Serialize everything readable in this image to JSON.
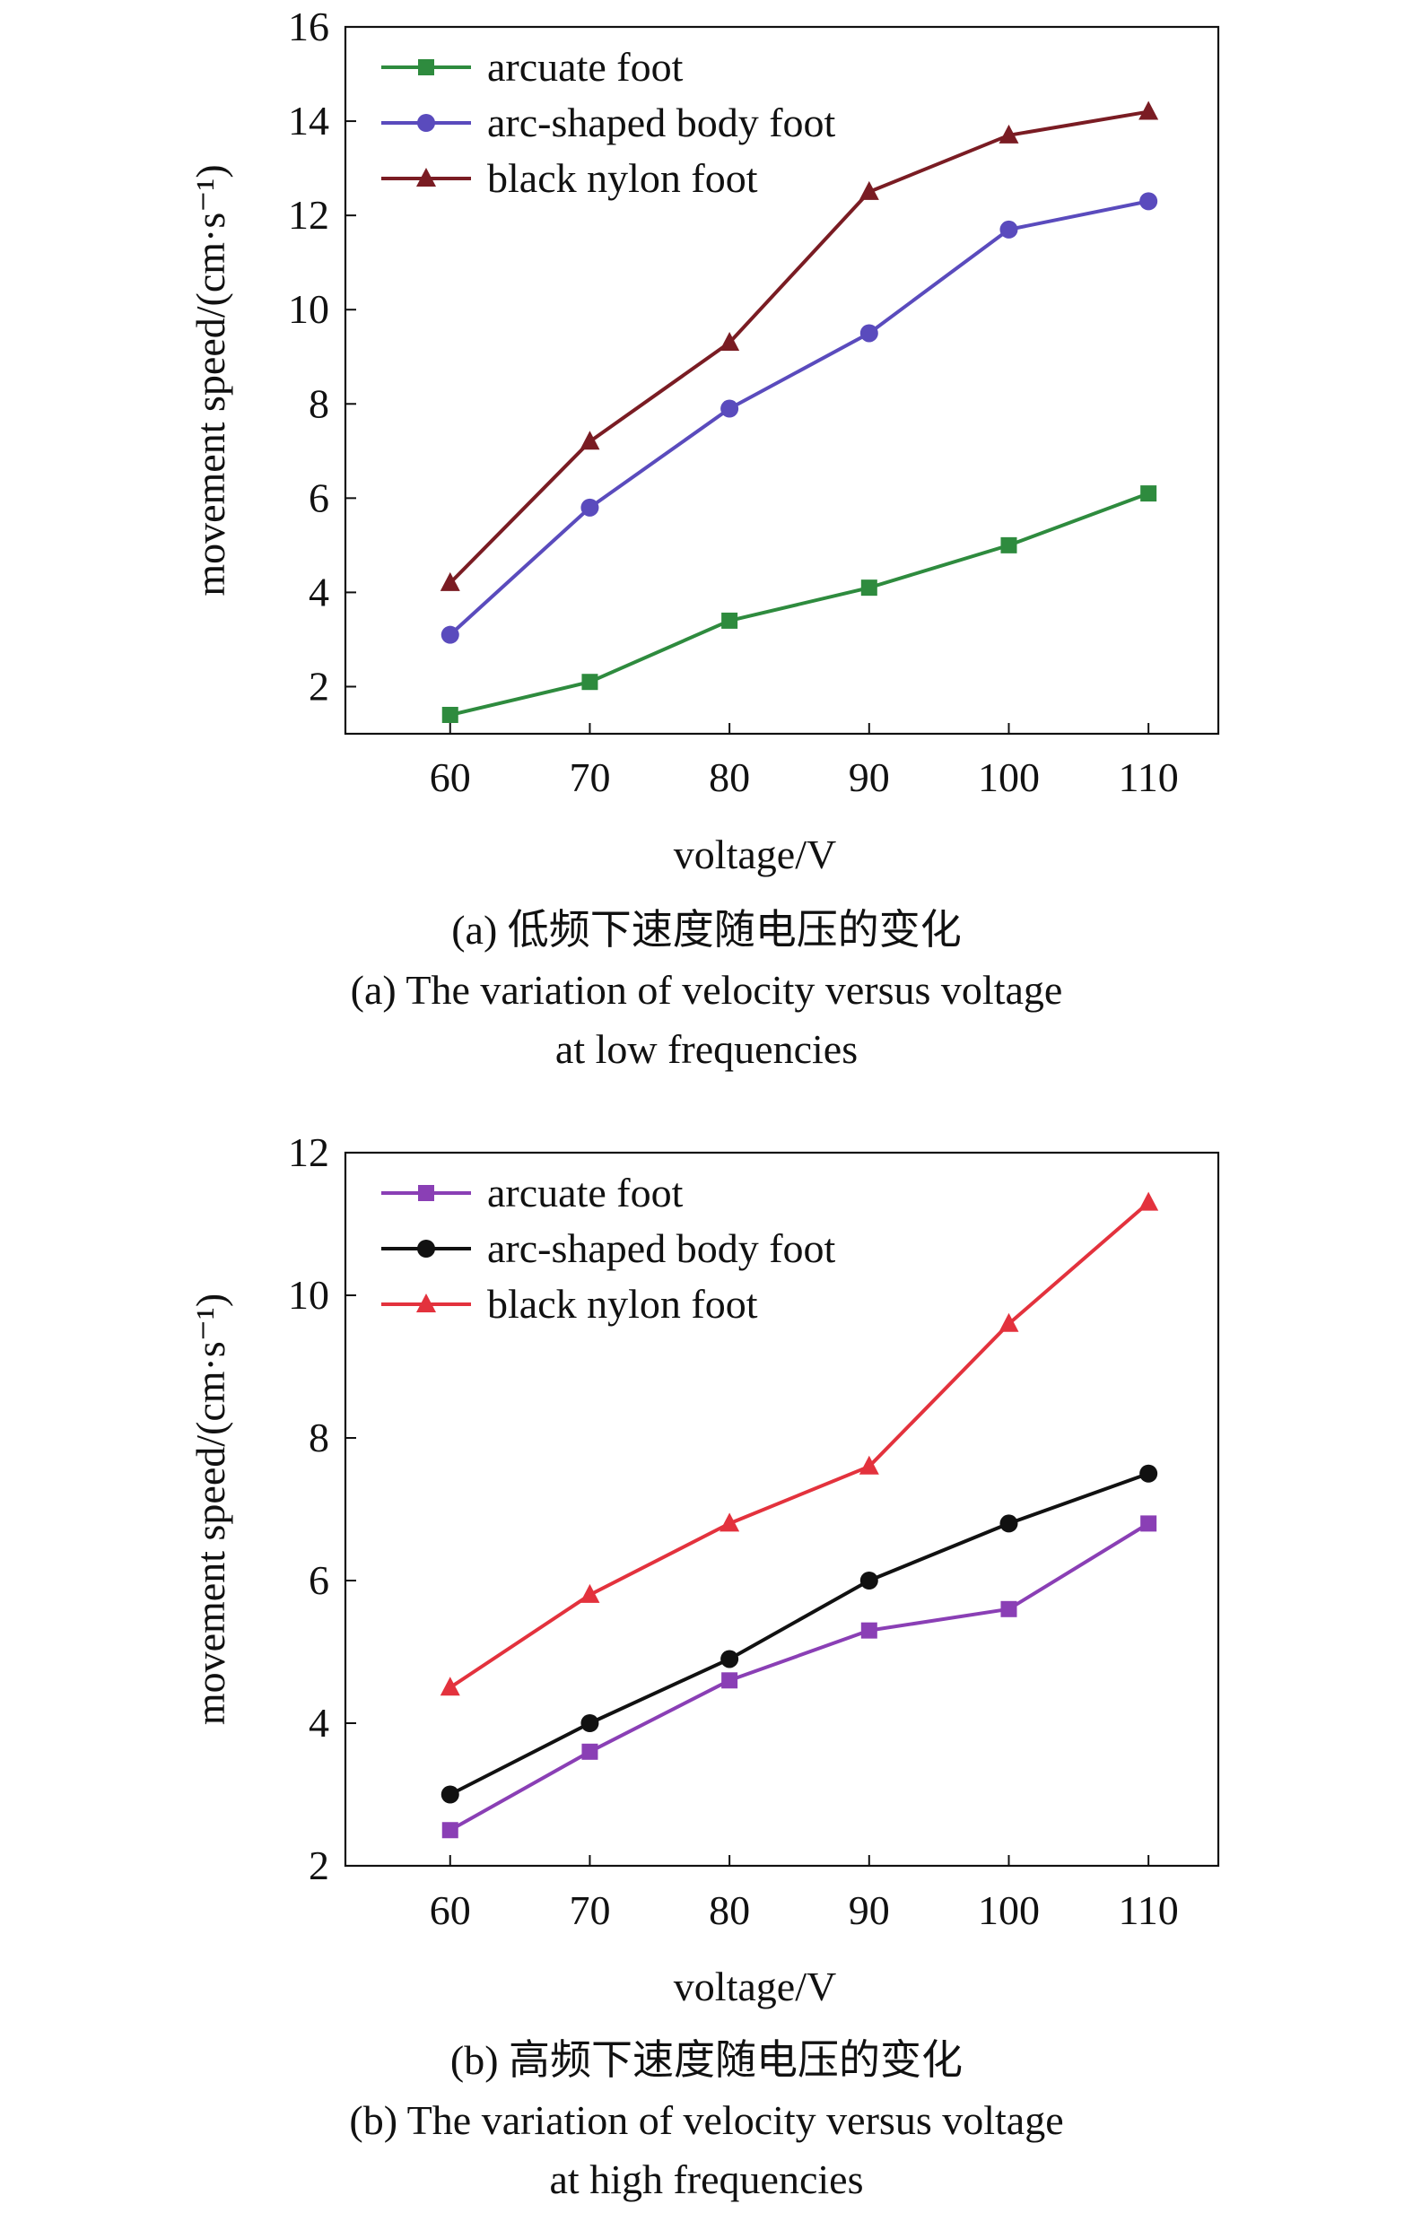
{
  "chart_data": [
    {
      "type": "line",
      "xlabel": "voltage/V",
      "ylabel": "movement speed/(cm·s⁻¹)",
      "x": [
        60,
        70,
        80,
        90,
        100,
        110
      ],
      "xlim": [
        52.5,
        115
      ],
      "ylim": [
        1,
        16
      ],
      "yticks": [
        2,
        4,
        6,
        8,
        10,
        12,
        14,
        16
      ],
      "grid": false,
      "legend_position": "top-left",
      "series": [
        {
          "name": "arcuate foot",
          "color": "#2e8b3e",
          "marker": "square",
          "values": [
            1.4,
            2.1,
            3.4,
            4.1,
            5.0,
            6.1
          ]
        },
        {
          "name": "arc-shaped body foot",
          "color": "#5a4bbd",
          "marker": "circle",
          "values": [
            3.1,
            5.8,
            7.9,
            9.5,
            11.7,
            12.3
          ]
        },
        {
          "name": "black nylon foot",
          "color": "#7a1c23",
          "marker": "triangle",
          "values": [
            4.2,
            7.2,
            9.3,
            12.5,
            13.7,
            14.2
          ]
        }
      ],
      "caption_cn": "(a) 低频下速度随电压的变化",
      "caption_en_line1": "(a) The variation of velocity versus voltage",
      "caption_en_line2": "at low frequencies"
    },
    {
      "type": "line",
      "xlabel": "voltage/V",
      "ylabel": "movement speed/(cm·s⁻¹)",
      "x": [
        60,
        70,
        80,
        90,
        100,
        110
      ],
      "xlim": [
        52.5,
        115
      ],
      "ylim": [
        2,
        12
      ],
      "yticks": [
        2,
        4,
        6,
        8,
        10,
        12
      ],
      "grid": false,
      "legend_position": "top-left",
      "series": [
        {
          "name": "arcuate foot",
          "color": "#8a3fb5",
          "marker": "square",
          "values": [
            2.5,
            3.6,
            4.6,
            5.3,
            5.6,
            6.8
          ]
        },
        {
          "name": "arc-shaped body foot",
          "color": "#111111",
          "marker": "circle",
          "values": [
            3.0,
            4.0,
            4.9,
            6.0,
            6.8,
            7.5
          ]
        },
        {
          "name": "black nylon foot",
          "color": "#e3323d",
          "marker": "triangle",
          "values": [
            4.5,
            5.8,
            6.8,
            7.6,
            9.6,
            11.3
          ]
        }
      ],
      "caption_cn": "(b) 高频下速度随电压的变化",
      "caption_en_line1": "(b) The variation of velocity versus voltage",
      "caption_en_line2": "at high frequencies"
    }
  ]
}
